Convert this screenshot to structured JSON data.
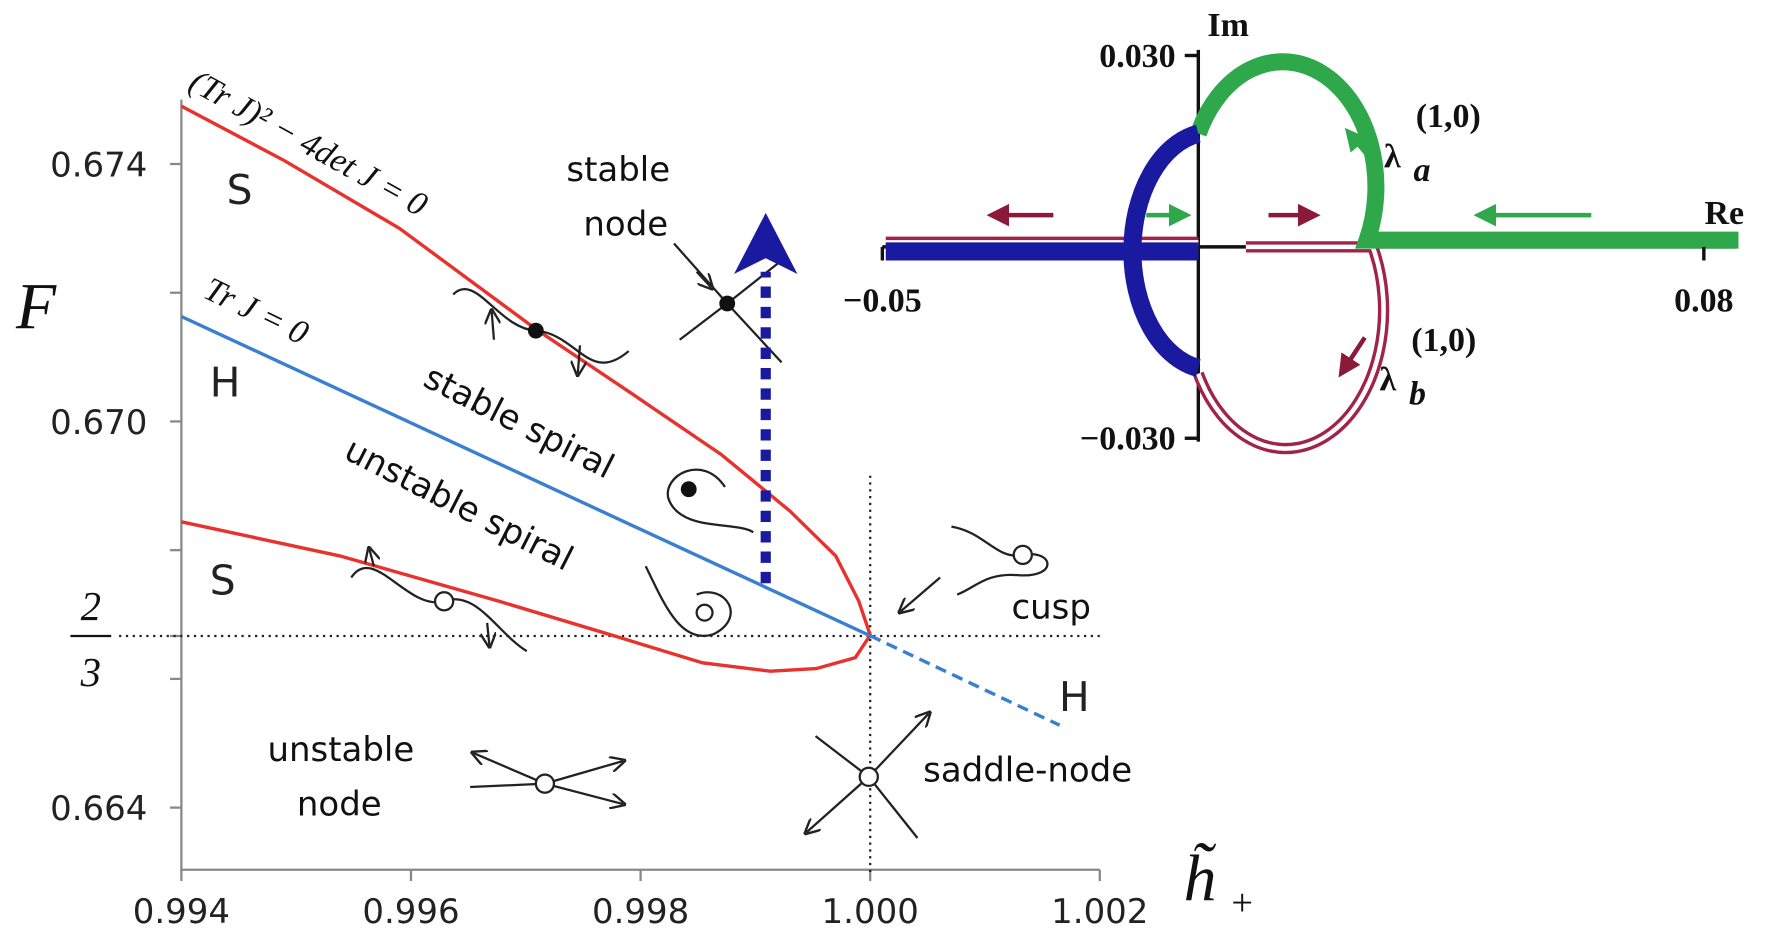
{
  "chart_data": [
    {
      "type": "line",
      "ylabel": "F",
      "xlabel": {
        "text": "h̃",
        "subscript": "+"
      },
      "xlim": [
        0.994,
        1.002
      ],
      "ylim": [
        0.663,
        0.675
      ],
      "xticks": [
        0.994,
        0.996,
        0.998,
        {
          "value": 1,
          "label": "1.000"
        },
        1.002
      ],
      "yticks": [
        0.664,
        {
          "value": 0.6666666666666666,
          "numerator": "2",
          "denominator": "3"
        },
        {
          "value": 0.67,
          "label": "0.670"
        },
        0.674
      ],
      "yminor": [
        0.666,
        0.668,
        0.672
      ],
      "series": [
        {
          "color": "#e8322d",
          "dash": false,
          "x": [
            0.994,
            0.9949,
            0.9959,
            0.9971,
            0.9979,
            0.9987,
            0.9993,
            0.9997,
            0.9999,
            1.0,
            0.99987,
            0.99953,
            0.99913,
            0.99854,
            0.99775,
            0.99676,
            0.99538,
            0.994
          ],
          "values": [
            0.6749,
            0.67405,
            0.673,
            0.67142,
            0.67046,
            0.66949,
            0.66861,
            0.66791,
            0.66721,
            0.66668,
            0.66633,
            0.66616,
            0.66612,
            0.66625,
            0.66668,
            0.66721,
            0.66791,
            0.66844
          ]
        },
        {
          "color": "#3a7fd0",
          "dash": false,
          "x": [
            0.994,
            1.0
          ],
          "values": [
            0.67163,
            0.66667
          ]
        },
        {
          "color": "#3a7fd0",
          "dash": true,
          "x": [
            1.0,
            1.00165
          ],
          "values": [
            0.66667,
            0.66528
          ]
        }
      ],
      "annotations": [
        "(Tr J)² − 4det J = 0",
        "Tr J = 0",
        "S",
        "H",
        "S",
        "H",
        "stable",
        "node",
        "stable spiral",
        "unstable spiral",
        "cusp",
        "saddle-node",
        "unstable",
        "node"
      ]
    },
    {
      "type": "line",
      "xlabel": "Re",
      "ylabel": "Im",
      "xlim": [
        -0.05,
        0.085
      ],
      "ylim": [
        -0.03,
        0.03
      ],
      "xticks": [
        {
          "value": -0.05,
          "label": "−0.05"
        },
        0.08
      ],
      "yticks": [
        {
          "value": -0.03,
          "label": "−0.030"
        },
        {
          "value": 0.03,
          "label": "0.030"
        }
      ],
      "annotations": [
        {
          "symbol": "λ",
          "sub": "a",
          "sup": "(1,0)"
        },
        {
          "symbol": "λ",
          "sub": "b",
          "sup": "(1,0)"
        }
      ]
    }
  ]
}
